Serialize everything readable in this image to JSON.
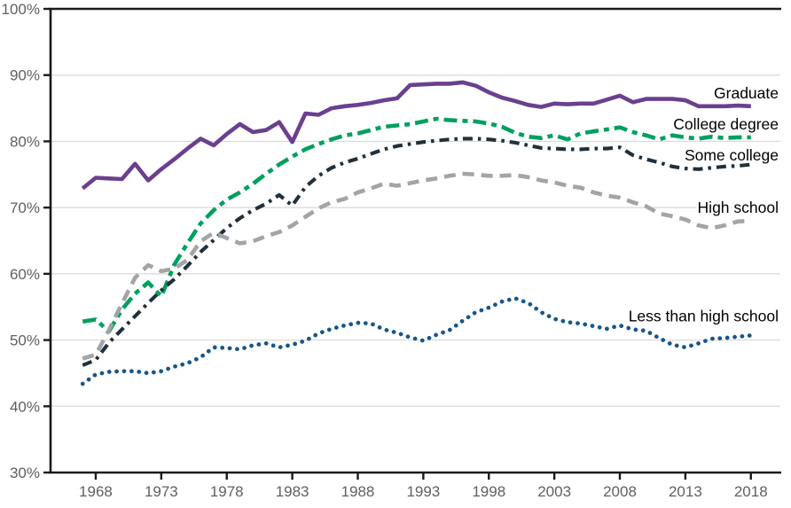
{
  "chart_data": {
    "type": "line",
    "title": "",
    "xlabel": "",
    "ylabel": "",
    "grid": "horizontal",
    "legend_position": "end-of-line-labels",
    "y_range": [
      30,
      100
    ],
    "x_range": [
      1964.55,
      2020.25
    ],
    "y_ticks": [
      {
        "value": 100,
        "label": "100%"
      },
      {
        "value": 90,
        "label": "90%"
      },
      {
        "value": 80,
        "label": "80%"
      },
      {
        "value": 70,
        "label": "70%"
      },
      {
        "value": 60,
        "label": "60%"
      },
      {
        "value": 50,
        "label": "50%"
      },
      {
        "value": 40,
        "label": "40%"
      },
      {
        "value": 30,
        "label": "30%"
      }
    ],
    "x_ticks": [
      {
        "value": 1968,
        "label": "1968"
      },
      {
        "value": 1973,
        "label": "1973"
      },
      {
        "value": 1978,
        "label": "1978"
      },
      {
        "value": 1983,
        "label": "1983"
      },
      {
        "value": 1988,
        "label": "1988"
      },
      {
        "value": 1993,
        "label": "1993"
      },
      {
        "value": 1998,
        "label": "1998"
      },
      {
        "value": 2003,
        "label": "2003"
      },
      {
        "value": 2008,
        "label": "2008"
      },
      {
        "value": 2013,
        "label": "2013"
      },
      {
        "value": 2018,
        "label": "2018"
      }
    ],
    "x": [
      1967,
      1968,
      1969,
      1970,
      1971,
      1972,
      1973,
      1974,
      1975,
      1976,
      1977,
      1978,
      1979,
      1980,
      1981,
      1982,
      1983,
      1984,
      1985,
      1986,
      1987,
      1988,
      1989,
      1990,
      1991,
      1992,
      1993,
      1994,
      1995,
      1996,
      1997,
      1998,
      1999,
      2000,
      2001,
      2002,
      2003,
      2004,
      2005,
      2006,
      2007,
      2008,
      2009,
      2010,
      2011,
      2012,
      2013,
      2014,
      2015,
      2016,
      2017,
      2018
    ],
    "series": [
      {
        "name": "Graduate",
        "color": "#6b3f8f",
        "dash": "",
        "stroke_width": 4.6,
        "label_value": 87.3,
        "values": [
          72.9,
          74.5,
          74.4,
          74.3,
          76.6,
          74.1,
          75.8,
          77.3,
          78.9,
          80.4,
          79.4,
          81.1,
          82.6,
          81.4,
          81.7,
          82.9,
          79.9,
          84.2,
          84.0,
          85.0,
          85.3,
          85.5,
          85.8,
          86.2,
          86.5,
          88.5,
          88.6,
          88.7,
          88.7,
          88.9,
          88.4,
          87.4,
          86.6,
          86.1,
          85.5,
          85.2,
          85.7,
          85.6,
          85.7,
          85.7,
          86.3,
          86.9,
          85.9,
          86.4,
          86.4,
          86.4,
          86.2,
          85.3,
          85.3,
          85.3,
          85.4,
          85.3
        ]
      },
      {
        "name": "College degree",
        "color": "#00a05f",
        "dash": "15 6 6 6",
        "stroke_width": 4.6,
        "label_value": 82.6,
        "values": [
          52.8,
          53.1,
          51.3,
          54.6,
          57.0,
          58.7,
          56.6,
          61.4,
          64.6,
          67.6,
          69.6,
          71.2,
          72.3,
          73.6,
          75.1,
          76.5,
          77.7,
          78.8,
          79.6,
          80.3,
          80.9,
          81.2,
          81.7,
          82.2,
          82.4,
          82.6,
          83.0,
          83.4,
          83.2,
          83.1,
          83.0,
          82.7,
          82.2,
          81.3,
          80.7,
          80.5,
          80.9,
          80.3,
          81.2,
          81.5,
          81.8,
          82.1,
          81.4,
          80.9,
          80.3,
          80.9,
          80.6,
          80.4,
          80.7,
          80.5,
          80.6,
          80.6
        ]
      },
      {
        "name": "Some college",
        "color": "#20303c",
        "dash": "11 6 3.5 6",
        "stroke_width": 4.1,
        "label_value": 77.9,
        "values": [
          46.2,
          47.0,
          49.6,
          51.6,
          53.6,
          55.6,
          57.5,
          59.2,
          61.2,
          63.3,
          65.1,
          66.9,
          68.4,
          69.6,
          70.6,
          71.9,
          70.3,
          73.1,
          74.8,
          76.0,
          76.8,
          77.4,
          78.1,
          78.8,
          79.3,
          79.6,
          79.9,
          80.1,
          80.3,
          80.4,
          80.4,
          80.3,
          80.1,
          79.8,
          79.4,
          79.0,
          78.9,
          78.8,
          78.8,
          78.9,
          78.9,
          79.1,
          77.9,
          77.3,
          76.8,
          76.2,
          75.9,
          75.8,
          76.0,
          76.2,
          76.3,
          76.5
        ]
      },
      {
        "name": "High school",
        "color": "#a2a4a7",
        "dash": "13 8",
        "stroke_width": 4.6,
        "label_value": 70.0,
        "values": [
          47.2,
          47.8,
          51.5,
          55.5,
          59.4,
          61.3,
          60.4,
          60.8,
          62.1,
          64.9,
          66.2,
          65.4,
          64.6,
          64.9,
          65.7,
          66.3,
          67.3,
          68.6,
          69.9,
          70.8,
          71.3,
          72.3,
          72.9,
          73.6,
          73.3,
          73.7,
          74.1,
          74.4,
          74.8,
          75.1,
          75.0,
          74.8,
          74.8,
          74.9,
          74.6,
          74.1,
          73.8,
          73.3,
          73.0,
          72.3,
          71.8,
          71.5,
          70.8,
          70.2,
          69.1,
          68.7,
          68.2,
          67.3,
          66.9,
          67.3,
          67.9,
          68.0
        ]
      },
      {
        "name": "Less than high school",
        "color": "#17568c",
        "dash": "0.1 8.3",
        "linecap": "round",
        "stroke_width": 4.7,
        "label_value": 53.6,
        "values": [
          43.4,
          44.8,
          45.2,
          45.3,
          45.3,
          45.0,
          45.3,
          46.0,
          46.5,
          47.4,
          48.9,
          48.8,
          48.6,
          49.2,
          49.5,
          48.9,
          49.3,
          49.9,
          51.0,
          51.7,
          52.2,
          52.6,
          52.5,
          51.6,
          51.1,
          50.4,
          49.9,
          50.8,
          51.5,
          52.9,
          54.2,
          54.9,
          55.8,
          56.3,
          55.6,
          54.2,
          53.2,
          52.7,
          52.5,
          52.1,
          51.7,
          52.2,
          51.6,
          51.4,
          50.3,
          49.3,
          48.9,
          49.5,
          50.2,
          50.3,
          50.5,
          50.7
        ]
      }
    ],
    "axis_color": "#1a1a1a",
    "gridline_color": "#d9d9d9",
    "tick_label_color": "#5f6062"
  }
}
